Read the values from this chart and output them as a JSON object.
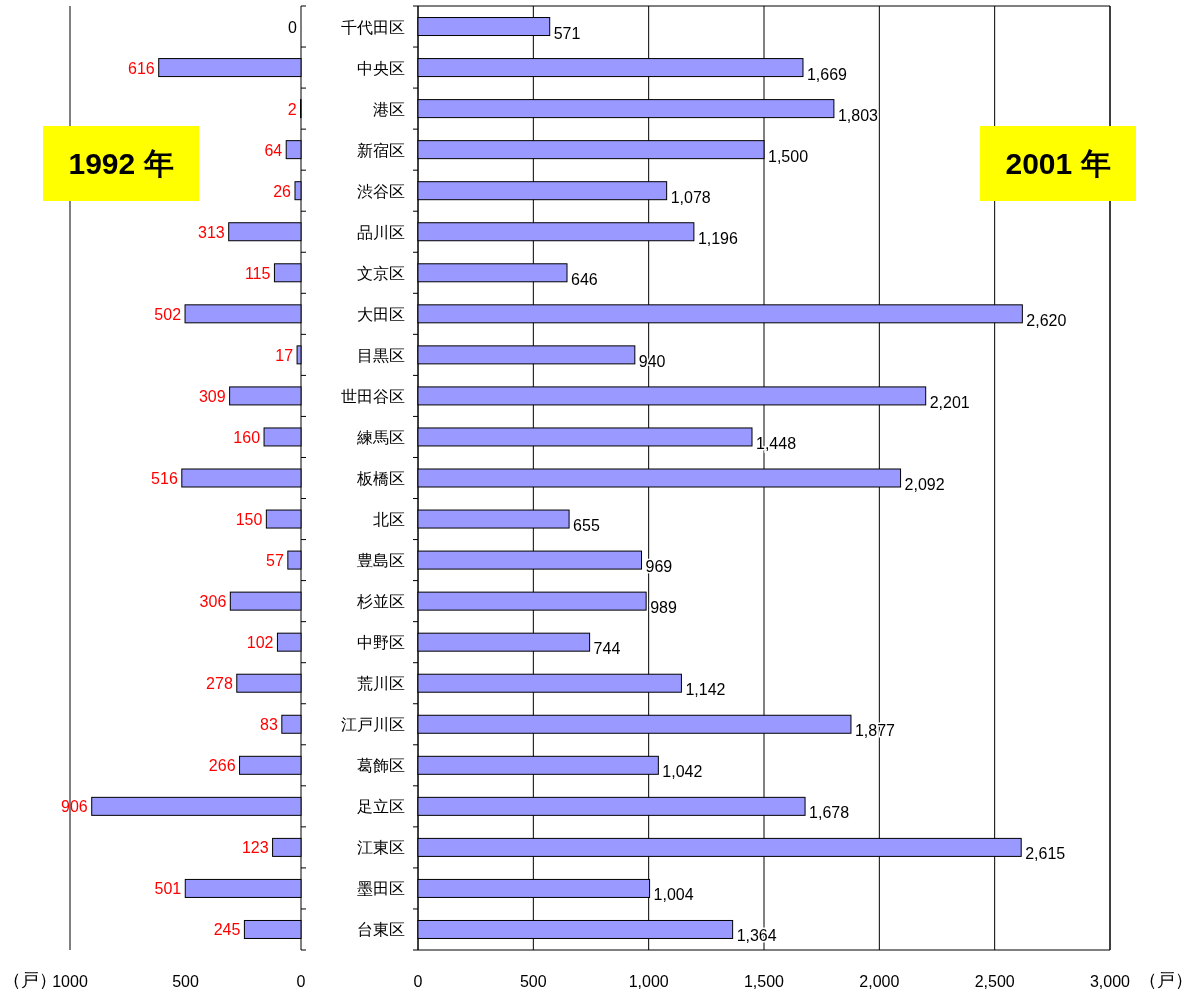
{
  "chart_data": [
    {
      "type": "bar",
      "orientation": "horizontal",
      "title": "1992 年",
      "xlabel": "（戸）",
      "grid": false,
      "data_labels": true,
      "color": "#9999ff",
      "xlim": [
        1000,
        0
      ],
      "xticks": [
        1000,
        500,
        0
      ],
      "categories": [
        null,
        null,
        null,
        null,
        null,
        null,
        null,
        null,
        null,
        null,
        null,
        null,
        null,
        null,
        null,
        null,
        null,
        null,
        null,
        null,
        null,
        null,
        null
      ],
      "values": [
        0,
        616,
        2,
        64,
        26,
        313,
        115,
        502,
        17,
        309,
        160,
        516,
        150,
        57,
        306,
        102,
        278,
        83,
        266,
        906,
        123,
        501,
        245
      ]
    },
    {
      "type": "bar",
      "orientation": "horizontal",
      "title": "2001 年",
      "xlabel": "（戸）",
      "grid": "x",
      "color": "#9999ff",
      "xlim": [
        0,
        3000
      ],
      "xticks": [
        0,
        500,
        {
          "value": 1000,
          "label": "1,000"
        },
        {
          "value": 1500,
          "label": "1,500"
        },
        {
          "value": 2000,
          "label": "2,000"
        },
        {
          "value": 2500,
          "label": "2,500"
        },
        {
          "value": 3000,
          "label": "3,000"
        }
      ],
      "categories": [
        "千代田区",
        "中央区",
        "港区",
        "新宿区",
        "渋谷区",
        "品川区",
        "文京区",
        "大田区",
        "目黒区",
        "世田谷区",
        "練馬区",
        "板橋区",
        "北区",
        "豊島区",
        "杉並区",
        "中野区",
        "荒川区",
        "江戸川区",
        "葛飾区",
        "足立区",
        "江東区",
        "墨田区",
        "台東区"
      ],
      "values": [
        571,
        1669,
        1803,
        1500,
        1078,
        1196,
        646,
        2620,
        940,
        2201,
        1448,
        2092,
        655,
        969,
        989,
        744,
        1142,
        1877,
        1042,
        1678,
        2615,
        1004,
        1364
      ],
      "value_labels": [
        "571",
        "1,669",
        "1,803",
        "1,500",
        "1,078",
        "1,196",
        "646",
        "2,620",
        "940",
        "2,201",
        "1,448",
        "2,092",
        "655",
        "969",
        "989",
        "744",
        "1,142",
        "1,877",
        "1,042",
        "1,678",
        "2,615",
        "1,004",
        "1,364"
      ]
    }
  ]
}
